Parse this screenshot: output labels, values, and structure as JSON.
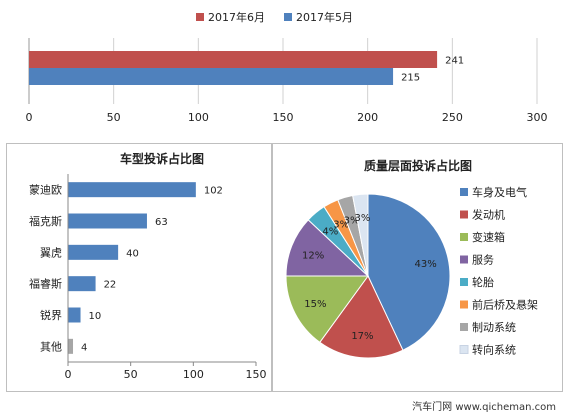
{
  "chart_data": [
    {
      "type": "bar",
      "orientation": "horizontal",
      "title": "",
      "legend": [
        "2017年6月",
        "2017年5月"
      ],
      "legend_position": "top",
      "series": [
        {
          "name": "2017年6月",
          "values": [
            241
          ],
          "color": "#c0504d"
        },
        {
          "name": "2017年5月",
          "values": [
            215
          ],
          "color": "#4f81bd"
        }
      ],
      "xlim": [
        0,
        300
      ],
      "xticks": [
        "0",
        "50",
        "100",
        "150",
        "200",
        "250",
        "300"
      ],
      "grid": true
    },
    {
      "type": "bar",
      "orientation": "horizontal",
      "title": "车型投诉占比图",
      "categories": [
        "蒙迪欧",
        "福克斯",
        "翼虎",
        "福睿斯",
        "锐界",
        "其他"
      ],
      "values": [
        102,
        63,
        40,
        22,
        10,
        4
      ],
      "colors": [
        "#4f81bd",
        "#4f81bd",
        "#4f81bd",
        "#4f81bd",
        "#4f81bd",
        "#a6a6a6"
      ],
      "xlim": [
        0,
        150
      ],
      "xticks": [
        "0",
        "50",
        "100",
        "150"
      ],
      "grid": false
    },
    {
      "type": "pie",
      "title": "质量层面投诉占比图",
      "categories": [
        "车身及电气",
        "发动机",
        "变速箱",
        "服务",
        "轮胎",
        "前后桥及悬架",
        "制动系统",
        "转向系统"
      ],
      "values": [
        43,
        17,
        15,
        12,
        4,
        3,
        3,
        3
      ],
      "labels": [
        "43%",
        "17%",
        "15%",
        "12%",
        "4%",
        "3%",
        "3%",
        "3%"
      ],
      "colors": [
        "#4f81bd",
        "#c0504d",
        "#9bbb59",
        "#8064a2",
        "#4bacc6",
        "#f79646",
        "#a6a6a6",
        "#dbe5f1"
      ],
      "legend_position": "right"
    }
  ],
  "footer": "汽车门网 www.qicheman.com"
}
